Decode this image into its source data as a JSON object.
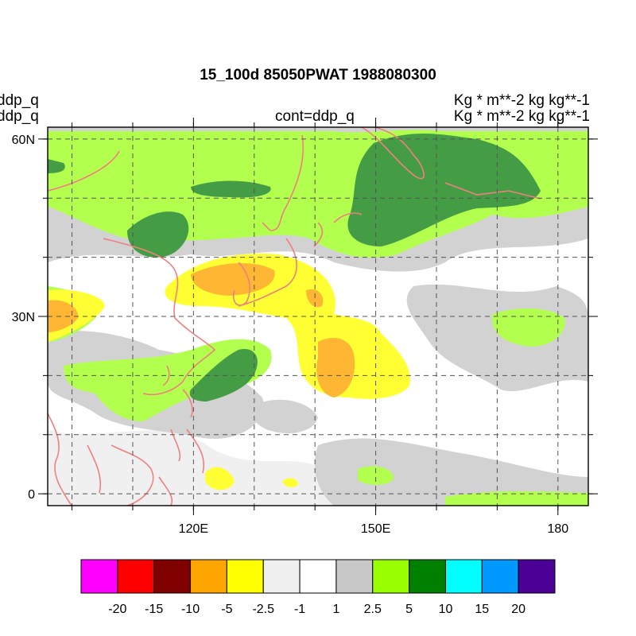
{
  "header": {
    "title": "15_100d 85050PWAT  1988080300",
    "left_line1": "ddp_q",
    "left_line2": "ddp_q",
    "center_line2": "cont=ddp_q",
    "right_line1": "Kg  * m**-2 kg kg**-1",
    "right_line2": "Kg  * m**-2 kg kg**-1"
  },
  "map": {
    "lon_range": [
      96,
      185
    ],
    "lat_range": [
      -2,
      62
    ],
    "lat_ticks": [
      {
        "value": 60,
        "label": "60N"
      },
      {
        "value": 30,
        "label": "30N"
      },
      {
        "value": 0,
        "label": "0"
      }
    ],
    "lon_ticks": [
      {
        "value": 120,
        "label": "120E"
      },
      {
        "value": 150,
        "label": "150E"
      },
      {
        "value": 180,
        "label": "180"
      }
    ],
    "coast_color": "#f08080"
  },
  "colorbar": {
    "colors": [
      "#ff00ff",
      "#ff0000",
      "#800000",
      "#ffa500",
      "#ffff00",
      "#f0f0f0",
      "#ffffff",
      "#c8c8c8",
      "#99ff00",
      "#008000",
      "#00ffff",
      "#0099ff",
      "#4b0096"
    ],
    "labels": [
      "-20",
      "-15",
      "-10",
      "-5",
      "-2.5",
      "-1",
      "1",
      "2.5",
      "5",
      "10",
      "15",
      "20"
    ]
  }
}
